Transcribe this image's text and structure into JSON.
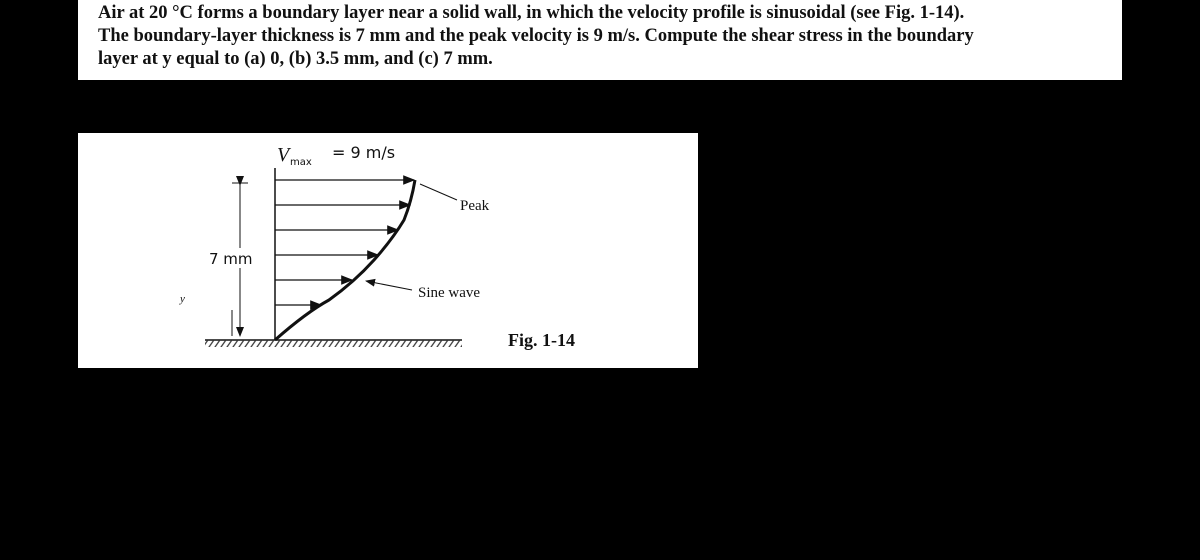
{
  "problem": {
    "lines": [
      "Air at 20 °C forms a boundary layer near a solid wall, in which the velocity profile is sinusoidal (see Fig. 1-14).",
      "The boundary-layer thickness is 7 mm and the peak velocity is 9 m/s. Compute the shear stress in the boundary",
      "layer at y equal to (a) 0, (b) 3.5 mm, and (c) 7 mm."
    ]
  },
  "figure": {
    "vmax_symbol": "V",
    "vmax_subscript": "max",
    "vmax_value": "= 9 m/s",
    "peak_label": "Peak",
    "thickness_label": "7 mm",
    "sine_label": "Sine wave",
    "axis_label": "y",
    "caption": "Fig. 1-14"
  }
}
